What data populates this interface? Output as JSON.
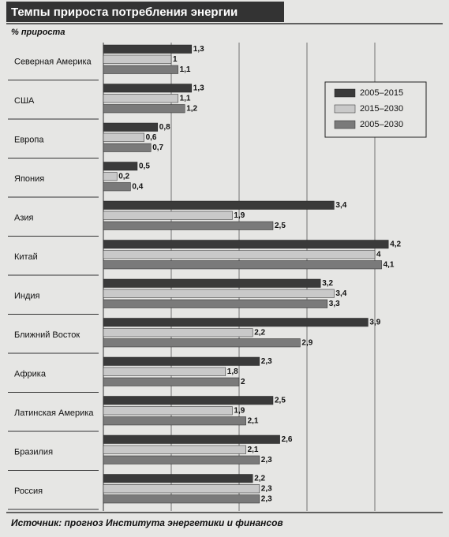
{
  "chart_data": {
    "type": "hbar",
    "title": "Темпы прироста потребления энергии",
    "subtitle": "% прироста",
    "source": "Источник: прогноз Института энергетики и финансов",
    "categories": [
      "Северная Америка",
      "США",
      "Европа",
      "Япония",
      "Азия",
      "Китай",
      "Индия",
      "Ближний Восток",
      "Африка",
      "Латинская Америка",
      "Бразилия",
      "Россия"
    ],
    "series": [
      {
        "name": "2005–2015",
        "color": "#3a3a3a",
        "values": [
          1.3,
          1.3,
          0.8,
          0.5,
          3.4,
          4.2,
          3.2,
          3.9,
          2.3,
          2.5,
          2.6,
          2.2
        ],
        "value_labels": [
          "1,3",
          "1,3",
          "0,8",
          "0,5",
          "3,4",
          "4,2",
          "3,2",
          "3,9",
          "2,3",
          "2,5",
          "2,6",
          "2,2"
        ]
      },
      {
        "name": "2015–2030",
        "color": "#c9c9c9",
        "values": [
          1,
          1.1,
          0.6,
          0.2,
          1.9,
          4,
          3.4,
          2.2,
          1.8,
          1.9,
          2.1,
          2.3
        ],
        "value_labels": [
          "1",
          "1,1",
          "0,6",
          "0,2",
          "1,9",
          "4",
          "3,4",
          "2,2",
          "1,8",
          "1,9",
          "2,1",
          "2,3"
        ]
      },
      {
        "name": "2005–2030",
        "color": "#7a7a7a",
        "values": [
          1.1,
          1.2,
          0.7,
          0.4,
          2.5,
          4.1,
          3.3,
          2.9,
          2,
          2.1,
          2.3,
          2.3
        ],
        "value_labels": [
          "1,1",
          "1,2",
          "0,7",
          "0,4",
          "2,5",
          "4,1",
          "3,3",
          "2,9",
          "2",
          "2,1",
          "2,3",
          "2,3"
        ]
      }
    ],
    "xlim": [
      0,
      5
    ],
    "xticks": [
      1,
      2,
      3,
      4
    ],
    "grid": true,
    "legend": "upper right"
  }
}
